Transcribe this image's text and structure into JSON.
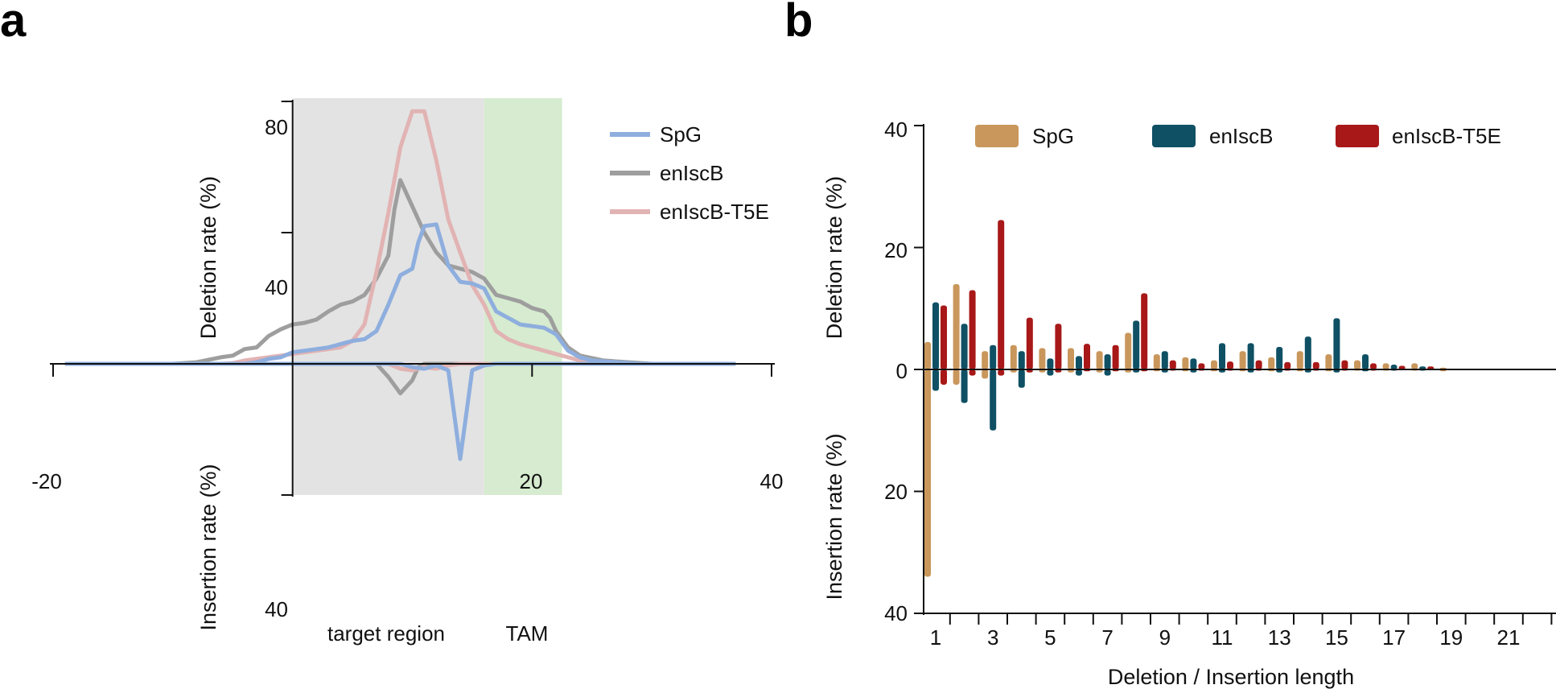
{
  "panels": {
    "a": "a",
    "b": "b"
  },
  "colors": {
    "target_region_bg": "#e3e3e3",
    "tam_bg": "#d6ebcf",
    "axis": "#111111"
  },
  "chart_data": [
    {
      "id": "a",
      "type": "line",
      "title": "",
      "xlabel": "",
      "ylabel_top": "Deletion rate (%)",
      "ylabel_bottom": "Insertion rate (%)",
      "xlim": [
        -20,
        40
      ],
      "x_ticks": [
        -20,
        20,
        40
      ],
      "x_tick_labels": [
        "-20",
        "20",
        "40"
      ],
      "ylim_deletion": [
        0,
        80
      ],
      "ylim_insertion": [
        0,
        40
      ],
      "y_ticks_top": [
        "80",
        "40"
      ],
      "y_ticks_bottom": [
        "40"
      ],
      "regions": [
        {
          "name": "target region",
          "label": "target region",
          "x_start": 0,
          "x_end": 16,
          "color": "#e3e3e3"
        },
        {
          "name": "TAM",
          "label": "TAM",
          "x_start": 16,
          "x_end": 22.5,
          "color": "#d6ebcf"
        }
      ],
      "legend": [
        {
          "name": "SpG",
          "color": "#8eaede"
        },
        {
          "name": "enIscB",
          "color": "#9e9e9e"
        },
        {
          "name": "enIscB-T5E",
          "color": "#e2b3b3"
        }
      ],
      "series": [
        {
          "name": "enIscB",
          "color": "#9e9e9e",
          "deletion": [
            [
              -19,
              0
            ],
            [
              -10,
              0
            ],
            [
              -8,
              0.5
            ],
            [
              -6,
              2
            ],
            [
              -5,
              2.5
            ],
            [
              -4,
              4.5
            ],
            [
              -3,
              5
            ],
            [
              -2,
              8.5
            ],
            [
              -1,
              10.5
            ],
            [
              0,
              12
            ],
            [
              1,
              12.5
            ],
            [
              2,
              13.5
            ],
            [
              3,
              16
            ],
            [
              4,
              18
            ],
            [
              5,
              19
            ],
            [
              6,
              21
            ],
            [
              7,
              26
            ],
            [
              8,
              33
            ],
            [
              8.5,
              47
            ],
            [
              9,
              56
            ],
            [
              10,
              48
            ],
            [
              11,
              40
            ],
            [
              12,
              34
            ],
            [
              13,
              30
            ],
            [
              14,
              29
            ],
            [
              15,
              28
            ],
            [
              16,
              26
            ],
            [
              17,
              21
            ],
            [
              18,
              20
            ],
            [
              19,
              19
            ],
            [
              20,
              17
            ],
            [
              21,
              16
            ],
            [
              21.5,
              14
            ],
            [
              22,
              10
            ],
            [
              23,
              5
            ],
            [
              24,
              2.5
            ],
            [
              26,
              1
            ],
            [
              28,
              0.5
            ],
            [
              30,
              0
            ],
            [
              37,
              0
            ]
          ],
          "insertion": [
            [
              -19,
              0
            ],
            [
              0,
              0
            ],
            [
              7,
              0
            ],
            [
              8,
              4
            ],
            [
              9,
              9
            ],
            [
              10,
              5
            ],
            [
              10.5,
              1
            ],
            [
              11,
              0
            ],
            [
              37,
              0
            ]
          ]
        },
        {
          "name": "enIscB-T5E",
          "color": "#e2b3b3",
          "deletion": [
            [
              -19,
              0
            ],
            [
              -6,
              0
            ],
            [
              -5,
              0.2
            ],
            [
              -4,
              1
            ],
            [
              -3,
              1.5
            ],
            [
              -2,
              2
            ],
            [
              -1,
              2.5
            ],
            [
              0,
              3
            ],
            [
              1,
              3.5
            ],
            [
              2,
              4
            ],
            [
              3,
              4.5
            ],
            [
              4,
              5
            ],
            [
              5,
              7
            ],
            [
              6,
              12
            ],
            [
              7,
              28
            ],
            [
              8,
              46
            ],
            [
              9,
              66
            ],
            [
              10,
              77
            ],
            [
              11,
              77
            ],
            [
              12,
              62
            ],
            [
              13,
              44
            ],
            [
              14,
              34
            ],
            [
              15,
              24
            ],
            [
              16,
              18
            ],
            [
              17,
              10
            ],
            [
              18,
              7.5
            ],
            [
              19,
              6
            ],
            [
              20,
              5
            ],
            [
              21,
              4
            ],
            [
              22,
              3
            ],
            [
              23,
              2
            ],
            [
              24,
              1
            ],
            [
              26,
              0.5
            ],
            [
              28,
              0
            ],
            [
              37,
              0
            ]
          ],
          "insertion": [
            [
              -19,
              0
            ],
            [
              0,
              0
            ],
            [
              8,
              0
            ],
            [
              9,
              1.5
            ],
            [
              10,
              2
            ],
            [
              11,
              1
            ],
            [
              12,
              1.5
            ],
            [
              13,
              0.5
            ],
            [
              14,
              0
            ],
            [
              37,
              0
            ]
          ]
        },
        {
          "name": "SpG",
          "color": "#8eaede",
          "deletion": [
            [
              -19,
              0
            ],
            [
              -4,
              0
            ],
            [
              -3,
              0.5
            ],
            [
              -2,
              1.5
            ],
            [
              -1,
              2
            ],
            [
              0,
              3.5
            ],
            [
              1,
              4
            ],
            [
              2,
              4.5
            ],
            [
              3,
              5
            ],
            [
              4,
              6
            ],
            [
              5,
              7
            ],
            [
              6,
              7.5
            ],
            [
              7,
              10
            ],
            [
              8,
              18
            ],
            [
              9,
              27
            ],
            [
              10,
              29
            ],
            [
              10.5,
              37
            ],
            [
              11,
              42
            ],
            [
              12,
              42.5
            ],
            [
              13,
              30
            ],
            [
              14,
              25
            ],
            [
              15,
              24.5
            ],
            [
              16,
              23
            ],
            [
              17,
              16
            ],
            [
              18,
              14
            ],
            [
              19,
              12
            ],
            [
              20,
              11.5
            ],
            [
              21,
              11
            ],
            [
              22,
              9
            ],
            [
              23,
              4
            ],
            [
              24,
              2
            ],
            [
              25,
              1
            ],
            [
              27,
              0.5
            ],
            [
              29,
              0
            ],
            [
              37,
              0
            ]
          ],
          "insertion": [
            [
              -19,
              0
            ],
            [
              0,
              0
            ],
            [
              9,
              0
            ],
            [
              10,
              1
            ],
            [
              11,
              1.5
            ],
            [
              12,
              0.5
            ],
            [
              13,
              2
            ],
            [
              14,
              29
            ],
            [
              15,
              2
            ],
            [
              16,
              0.5
            ],
            [
              17,
              0
            ],
            [
              37,
              0
            ]
          ]
        }
      ]
    },
    {
      "id": "b",
      "type": "bar",
      "title": "",
      "xlabel": "Deletion / Insertion length",
      "ylabel_top": "Deletion rate (%)",
      "ylabel_bottom": "Insertion rate (%)",
      "ylim_deletion": [
        0,
        40
      ],
      "ylim_insertion": [
        0,
        40
      ],
      "y_ticks_top": [
        "40",
        "20",
        "0"
      ],
      "y_ticks_bottom": [
        "20",
        "40"
      ],
      "categories": [
        1,
        2,
        3,
        4,
        5,
        6,
        7,
        8,
        9,
        10,
        11,
        12,
        13,
        14,
        15,
        16,
        17,
        18,
        19,
        20,
        21,
        22
      ],
      "x_tick_labels": [
        "1",
        "3",
        "5",
        "7",
        "9",
        "11",
        "13",
        "15",
        "17",
        "19",
        "21"
      ],
      "series": [
        {
          "name": "SpG",
          "color": "#c9975c",
          "deletion": [
            4.5,
            14,
            3,
            4,
            3.5,
            3.5,
            3,
            6,
            2.5,
            2,
            1.5,
            3,
            2,
            3,
            2.5,
            1.5,
            1,
            1,
            0.3,
            0,
            0,
            0
          ],
          "insertion": [
            34,
            2.5,
            1.5,
            0.5,
            0.5,
            0.5,
            0.5,
            0.5,
            0.3,
            0.3,
            0.3,
            0.3,
            0.3,
            0.3,
            0.3,
            0.2,
            0.2,
            0.2,
            0.3,
            0,
            0,
            0
          ]
        },
        {
          "name": "enIscB",
          "color": "#0f5064",
          "deletion": [
            11,
            7.5,
            4,
            3,
            1.8,
            2.2,
            2.5,
            8,
            3,
            1.8,
            4.3,
            4.3,
            3.7,
            5.4,
            8.4,
            2.5,
            0.8,
            0.5,
            0,
            0,
            0,
            0
          ],
          "insertion": [
            3.5,
            5.5,
            10,
            3,
            1,
            1,
            1,
            0.5,
            0.5,
            0.5,
            0.5,
            0.5,
            0.5,
            0.5,
            0.5,
            0.3,
            0.2,
            0.2,
            0,
            0,
            0,
            0
          ]
        },
        {
          "name": "enIscB-T5E",
          "color": "#a81818",
          "deletion": [
            10.5,
            13,
            24.5,
            8.5,
            7.5,
            4.2,
            4,
            12.5,
            1.5,
            1,
            1.3,
            1.5,
            1.2,
            1.2,
            1.5,
            1,
            0.6,
            0.5,
            0,
            0,
            0,
            0
          ],
          "insertion": [
            2.5,
            1,
            1,
            0.5,
            0.5,
            0.3,
            0.3,
            0.3,
            0.2,
            0.2,
            0.2,
            0.2,
            0.2,
            0.2,
            0.2,
            0.2,
            0.1,
            0.1,
            0,
            0,
            0,
            0
          ]
        }
      ],
      "legend": [
        {
          "name": "SpG",
          "color": "#c9975c"
        },
        {
          "name": "enIscB",
          "color": "#0f5064"
        },
        {
          "name": "enIscB-T5E",
          "color": "#a81818"
        }
      ]
    }
  ]
}
